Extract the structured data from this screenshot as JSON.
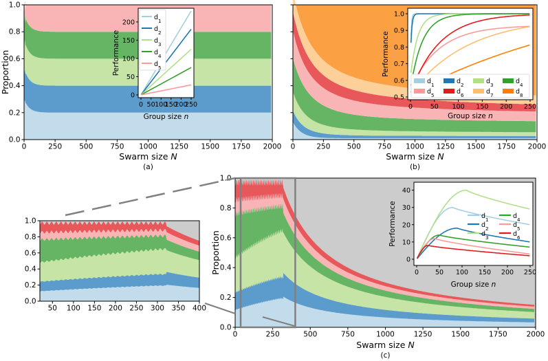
{
  "chart_data": [
    {
      "panel": "(a)",
      "type": "area",
      "stacked": true,
      "xlabel": "Swarm size N",
      "ylabel": "Proportion",
      "xlim": [
        0,
        2000
      ],
      "ylim": [
        0,
        1.0
      ],
      "xticks": [
        "0",
        "250",
        "500",
        "750",
        "1000",
        "1250",
        "1500",
        "1750",
        "2000"
      ],
      "yticks": [
        "0.0",
        "0.2",
        "0.4",
        "0.6",
        "0.8",
        "1.0"
      ],
      "caption": "(a)",
      "series": [
        {
          "name": "d1",
          "color": "#c3dcec",
          "start": 0.3,
          "end": 0.2
        },
        {
          "name": "d2",
          "color": "#5b9ccd",
          "start": 0.23,
          "end": 0.2
        },
        {
          "name": "d3",
          "color": "#c5e4a6",
          "start": 0.21,
          "end": 0.2
        },
        {
          "name": "d4",
          "color": "#66b565",
          "start": 0.19,
          "end": 0.2
        },
        {
          "name": "d5",
          "color": "#f9b5b5",
          "start": 0.07,
          "end": 0.2
        }
      ],
      "inset": {
        "type": "line",
        "xlabel": "Group size n",
        "ylabel": "Performance",
        "xlim": [
          0,
          250
        ],
        "ylim": [
          0,
          230
        ],
        "xticks": [
          "0",
          "50",
          "100",
          "150",
          "200",
          "250"
        ],
        "yticks": [
          "0",
          "50",
          "100",
          "150",
          "200"
        ],
        "legend": [
          "d1",
          "d2",
          "d3",
          "d4",
          "d5"
        ],
        "slopes": [
          0.92,
          0.72,
          0.5,
          0.3,
          0.11
        ]
      }
    },
    {
      "panel": "(b)",
      "type": "area",
      "stacked": true,
      "xlabel": "Swarm size N",
      "xlim": [
        0,
        2000
      ],
      "ylim": [
        0,
        1.0
      ],
      "xticks": [
        "0",
        "250",
        "500",
        "750",
        "1000",
        "1250",
        "1500",
        "1750",
        "2000"
      ],
      "caption": "(b)",
      "series": [
        {
          "name": "d1",
          "color": "#c3dcec"
        },
        {
          "name": "d2",
          "color": "#5b9ccd"
        },
        {
          "name": "d3",
          "color": "#c5e4a6"
        },
        {
          "name": "d4",
          "color": "#66b565"
        },
        {
          "name": "d5",
          "color": "#f9b5b5"
        },
        {
          "name": "d6",
          "color": "#e8585b"
        },
        {
          "name": "d7",
          "color": "#fdcf99"
        },
        {
          "name": "d8",
          "color": "#fba043"
        }
      ],
      "inset": {
        "type": "line",
        "xlabel": "Group size n",
        "ylabel": "Performance",
        "xlim": [
          0,
          250
        ],
        "ylim": [
          0.5,
          1.0
        ],
        "xticks": [
          "0",
          "50",
          "100",
          "150",
          "200",
          "250"
        ],
        "yticks": [
          "0.5",
          "0.6",
          "0.7",
          "0.8",
          "0.9",
          "1.0"
        ],
        "legend": [
          "d1",
          "d2",
          "d3",
          "d4",
          "d5",
          "d6",
          "d7",
          "d8"
        ]
      }
    },
    {
      "panel": "(c)",
      "type": "area",
      "stacked": true,
      "xlabel": "Swarm size N",
      "ylabel": "Proportion",
      "xlim": [
        0,
        2000
      ],
      "ylim": [
        0,
        1.0
      ],
      "xticks": [
        "0",
        "250",
        "500",
        "750",
        "1000",
        "1250",
        "1500",
        "1750",
        "2000"
      ],
      "yticks": [
        "0.0",
        "0.2",
        "0.4",
        "0.6",
        "0.8",
        "1.0"
      ],
      "caption": "(c)",
      "series": [
        {
          "name": "d1",
          "color": "#c3dcec"
        },
        {
          "name": "d2",
          "color": "#5b9ccd"
        },
        {
          "name": "d3",
          "color": "#c5e4a6"
        },
        {
          "name": "d4",
          "color": "#66b565"
        },
        {
          "name": "d5",
          "color": "#f9b5b5"
        },
        {
          "name": "d6",
          "color": "#e8585b"
        }
      ],
      "zoom": {
        "xlim": [
          20,
          400
        ],
        "ylim": [
          0,
          1.0
        ],
        "xticks": [
          "50",
          "100",
          "150",
          "200",
          "250",
          "300",
          "350",
          "400"
        ],
        "yticks": [
          "0.0",
          "0.2",
          "0.4",
          "0.6",
          "0.8",
          "1.0"
        ]
      },
      "inset": {
        "type": "line",
        "xlabel": "Group size n",
        "ylabel": "Performance",
        "xlim": [
          0,
          250
        ],
        "ylim": [
          -2,
          43
        ],
        "xticks": [
          "0",
          "50",
          "100",
          "150",
          "200",
          "250"
        ],
        "yticks": [
          "0",
          "10",
          "20",
          "30",
          "40"
        ],
        "legend": [
          "d1",
          "d2",
          "d3",
          "d4",
          "d5",
          "d6"
        ],
        "peaks": [
          [
            80,
            30
          ],
          [
            90,
            18
          ],
          [
            110,
            40
          ],
          [
            50,
            14
          ],
          [
            40,
            12
          ],
          [
            25,
            8
          ]
        ],
        "ends": [
          20,
          10,
          29,
          7,
          3,
          2
        ]
      }
    }
  ]
}
